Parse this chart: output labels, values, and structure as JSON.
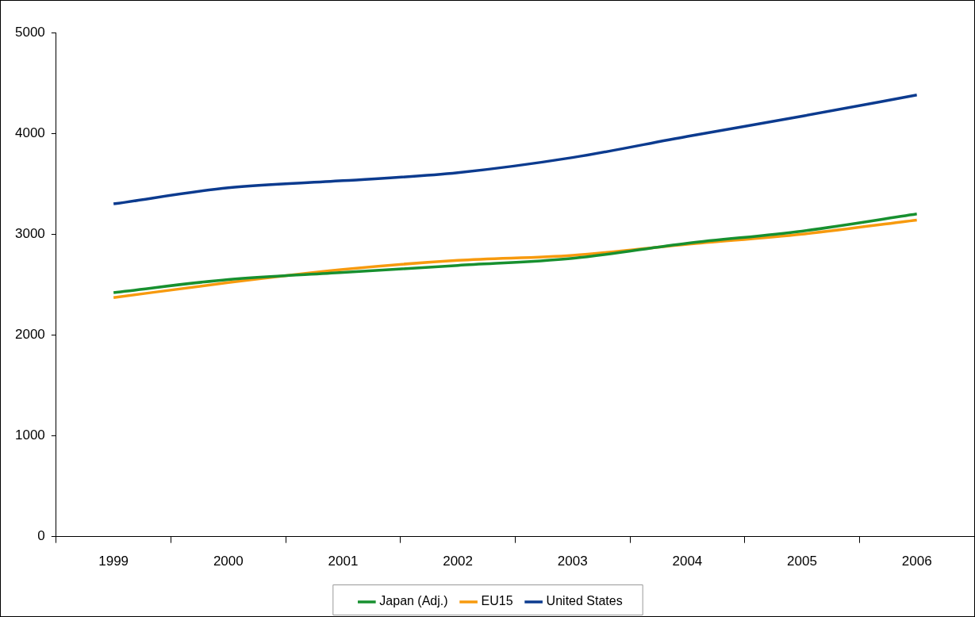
{
  "chart_data": {
    "type": "line",
    "categories": [
      "1999",
      "2000",
      "2001",
      "2002",
      "2003",
      "2004",
      "2005",
      "2006"
    ],
    "series": [
      {
        "name": "Japan (Adj.)",
        "color": "#17902f",
        "values": [
          2420,
          2550,
          2620,
          2690,
          2760,
          2910,
          3030,
          3200
        ]
      },
      {
        "name": "EU15",
        "color": "#f79a0e",
        "values": [
          2370,
          2520,
          2650,
          2740,
          2790,
          2900,
          3000,
          3140
        ]
      },
      {
        "name": "United States",
        "color": "#0c3b8f",
        "values": [
          3300,
          3460,
          3530,
          3610,
          3760,
          3970,
          4170,
          4380
        ]
      }
    ],
    "ylim": [
      0,
      5000
    ],
    "yticks": [
      0,
      1000,
      2000,
      3000,
      4000,
      5000
    ],
    "grid": false,
    "legend": "bottom",
    "marker": "none",
    "line_style": "solid"
  }
}
